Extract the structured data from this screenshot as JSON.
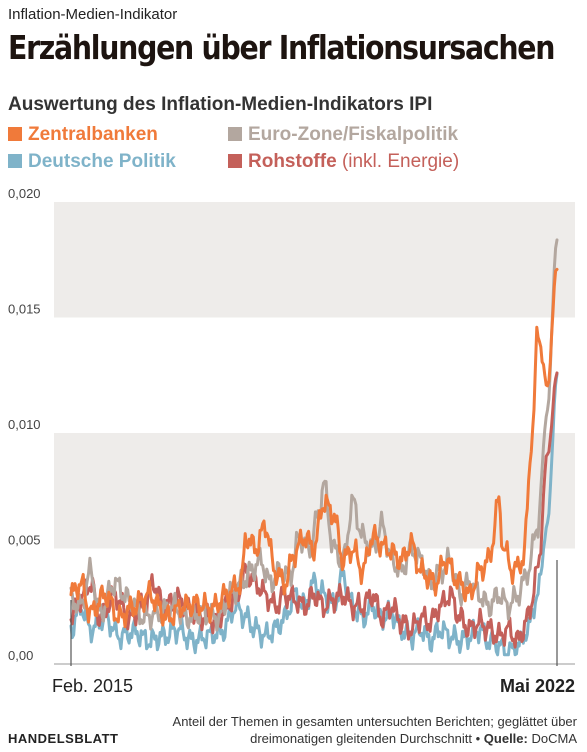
{
  "kicker": "Inflation-Medien-Indikator",
  "headline": "Erzählungen über Inflationsursachen",
  "subtitle": "Auswertung des Inflation-Medien-Indikators IPI",
  "legend": [
    {
      "name": "Zentralbanken",
      "color": "#f07a3a"
    },
    {
      "name": "Euro-Zone/Fiskalpolitik",
      "color": "#b3a79f"
    },
    {
      "name": "Deutsche Politik",
      "color": "#7fb3c9"
    },
    {
      "name": "Rohstoffe",
      "note": "(inkl. Energie)",
      "color": "#c4605a"
    }
  ],
  "footer": {
    "line1": "Anteil der Themen in gesamten untersuchten Berichten; geglättet über",
    "line2": "dreimonatigen gleitenden Durchschnitt •",
    "source_label": "Quelle:",
    "source": "DoCMA"
  },
  "brand": "HANDELSBLATT",
  "chart_data": {
    "type": "line",
    "ylim": [
      0,
      0.02
    ],
    "yticks": [
      "0,00",
      "0,005",
      "0,010",
      "0,015",
      "0,020"
    ],
    "x_start_label": "Feb. 2015",
    "x_end_label": "Mai 2022",
    "grid": "alternating horizontal bands",
    "series": [
      {
        "name": "Zentralbanken",
        "color": "#f07a3a",
        "anchors": [
          [
            0,
            0.003
          ],
          [
            0.02,
            0.0035
          ],
          [
            0.04,
            0.0022
          ],
          [
            0.07,
            0.003
          ],
          [
            0.1,
            0.002
          ],
          [
            0.13,
            0.0025
          ],
          [
            0.16,
            0.003
          ],
          [
            0.2,
            0.002
          ],
          [
            0.23,
            0.0025
          ],
          [
            0.26,
            0.0026
          ],
          [
            0.29,
            0.0024
          ],
          [
            0.32,
            0.003
          ],
          [
            0.35,
            0.0035
          ],
          [
            0.36,
            0.0055
          ],
          [
            0.38,
            0.005
          ],
          [
            0.4,
            0.006
          ],
          [
            0.42,
            0.004
          ],
          [
            0.44,
            0.0035
          ],
          [
            0.46,
            0.0048
          ],
          [
            0.48,
            0.0055
          ],
          [
            0.5,
            0.005
          ],
          [
            0.52,
            0.007
          ],
          [
            0.54,
            0.0065
          ],
          [
            0.56,
            0.0045
          ],
          [
            0.58,
            0.005
          ],
          [
            0.6,
            0.004
          ],
          [
            0.62,
            0.0055
          ],
          [
            0.65,
            0.005
          ],
          [
            0.68,
            0.0045
          ],
          [
            0.7,
            0.0052
          ],
          [
            0.72,
            0.004
          ],
          [
            0.75,
            0.0035
          ],
          [
            0.77,
            0.0045
          ],
          [
            0.8,
            0.0035
          ],
          [
            0.82,
            0.003
          ],
          [
            0.84,
            0.004
          ],
          [
            0.86,
            0.0045
          ],
          [
            0.88,
            0.007
          ],
          [
            0.89,
            0.005
          ],
          [
            0.91,
            0.004
          ],
          [
            0.93,
            0.0045
          ],
          [
            0.95,
            0.01
          ],
          [
            0.96,
            0.0145
          ],
          [
            0.98,
            0.012
          ],
          [
            1.0,
            0.0172
          ]
        ]
      },
      {
        "name": "Euro-Zone/Fiskalpolitik",
        "color": "#b3a79f",
        "anchors": [
          [
            0,
            0.0028
          ],
          [
            0.02,
            0.0025
          ],
          [
            0.04,
            0.004
          ],
          [
            0.06,
            0.0022
          ],
          [
            0.09,
            0.0035
          ],
          [
            0.12,
            0.0028
          ],
          [
            0.15,
            0.002
          ],
          [
            0.18,
            0.0022
          ],
          [
            0.21,
            0.0025
          ],
          [
            0.24,
            0.002
          ],
          [
            0.27,
            0.0022
          ],
          [
            0.3,
            0.002
          ],
          [
            0.33,
            0.003
          ],
          [
            0.35,
            0.0035
          ],
          [
            0.37,
            0.004
          ],
          [
            0.39,
            0.0045
          ],
          [
            0.41,
            0.0035
          ],
          [
            0.43,
            0.004
          ],
          [
            0.45,
            0.0038
          ],
          [
            0.47,
            0.0055
          ],
          [
            0.49,
            0.005
          ],
          [
            0.51,
            0.0065
          ],
          [
            0.52,
            0.0078
          ],
          [
            0.54,
            0.005
          ],
          [
            0.56,
            0.0045
          ],
          [
            0.58,
            0.007
          ],
          [
            0.6,
            0.0055
          ],
          [
            0.62,
            0.005
          ],
          [
            0.64,
            0.006
          ],
          [
            0.66,
            0.0045
          ],
          [
            0.68,
            0.004
          ],
          [
            0.7,
            0.005
          ],
          [
            0.72,
            0.0045
          ],
          [
            0.74,
            0.0035
          ],
          [
            0.76,
            0.004
          ],
          [
            0.78,
            0.0045
          ],
          [
            0.8,
            0.003
          ],
          [
            0.82,
            0.0035
          ],
          [
            0.84,
            0.003
          ],
          [
            0.86,
            0.0025
          ],
          [
            0.88,
            0.003
          ],
          [
            0.9,
            0.0025
          ],
          [
            0.92,
            0.003
          ],
          [
            0.94,
            0.004
          ],
          [
            0.96,
            0.006
          ],
          [
            0.98,
            0.011
          ],
          [
            1.0,
            0.0185
          ]
        ]
      },
      {
        "name": "Deutsche Politik",
        "color": "#7fb3c9",
        "anchors": [
          [
            0,
            0.0015
          ],
          [
            0.02,
            0.0025
          ],
          [
            0.04,
            0.0015
          ],
          [
            0.07,
            0.002
          ],
          [
            0.1,
            0.0012
          ],
          [
            0.13,
            0.0014
          ],
          [
            0.16,
            0.001
          ],
          [
            0.19,
            0.0012
          ],
          [
            0.22,
            0.0015
          ],
          [
            0.25,
            0.001
          ],
          [
            0.28,
            0.0012
          ],
          [
            0.31,
            0.0014
          ],
          [
            0.34,
            0.0025
          ],
          [
            0.36,
            0.002
          ],
          [
            0.38,
            0.0015
          ],
          [
            0.4,
            0.0012
          ],
          [
            0.42,
            0.0015
          ],
          [
            0.44,
            0.002
          ],
          [
            0.46,
            0.003
          ],
          [
            0.48,
            0.0025
          ],
          [
            0.5,
            0.0035
          ],
          [
            0.52,
            0.003
          ],
          [
            0.54,
            0.0025
          ],
          [
            0.56,
            0.0038
          ],
          [
            0.58,
            0.0025
          ],
          [
            0.6,
            0.002
          ],
          [
            0.62,
            0.0025
          ],
          [
            0.64,
            0.002
          ],
          [
            0.66,
            0.0022
          ],
          [
            0.68,
            0.0015
          ],
          [
            0.7,
            0.0012
          ],
          [
            0.72,
            0.0015
          ],
          [
            0.74,
            0.001
          ],
          [
            0.76,
            0.0015
          ],
          [
            0.78,
            0.0012
          ],
          [
            0.8,
            0.001
          ],
          [
            0.82,
            0.0012
          ],
          [
            0.84,
            0.0015
          ],
          [
            0.86,
            0.001
          ],
          [
            0.88,
            0.0008
          ],
          [
            0.9,
            0.0005
          ],
          [
            0.92,
            0.0008
          ],
          [
            0.94,
            0.0015
          ],
          [
            0.96,
            0.003
          ],
          [
            0.98,
            0.006
          ],
          [
            1.0,
            0.0125
          ]
        ]
      },
      {
        "name": "Rohstoffe",
        "color": "#c4605a",
        "anchors": [
          [
            0,
            0.002
          ],
          [
            0.02,
            0.0028
          ],
          [
            0.04,
            0.0035
          ],
          [
            0.06,
            0.002
          ],
          [
            0.09,
            0.003
          ],
          [
            0.12,
            0.002
          ],
          [
            0.15,
            0.0025
          ],
          [
            0.17,
            0.0035
          ],
          [
            0.19,
            0.0025
          ],
          [
            0.22,
            0.0028
          ],
          [
            0.25,
            0.0022
          ],
          [
            0.28,
            0.002
          ],
          [
            0.3,
            0.0018
          ],
          [
            0.32,
            0.0025
          ],
          [
            0.34,
            0.003
          ],
          [
            0.36,
            0.004
          ],
          [
            0.38,
            0.0035
          ],
          [
            0.4,
            0.003
          ],
          [
            0.42,
            0.0025
          ],
          [
            0.44,
            0.003
          ],
          [
            0.46,
            0.0028
          ],
          [
            0.48,
            0.0025
          ],
          [
            0.5,
            0.003
          ],
          [
            0.52,
            0.0025
          ],
          [
            0.54,
            0.0028
          ],
          [
            0.56,
            0.003
          ],
          [
            0.58,
            0.0025
          ],
          [
            0.6,
            0.0025
          ],
          [
            0.62,
            0.003
          ],
          [
            0.64,
            0.002
          ],
          [
            0.66,
            0.0025
          ],
          [
            0.68,
            0.0018
          ],
          [
            0.7,
            0.0015
          ],
          [
            0.72,
            0.002
          ],
          [
            0.74,
            0.0018
          ],
          [
            0.76,
            0.0025
          ],
          [
            0.78,
            0.003
          ],
          [
            0.8,
            0.002
          ],
          [
            0.82,
            0.0015
          ],
          [
            0.84,
            0.0018
          ],
          [
            0.86,
            0.0015
          ],
          [
            0.88,
            0.0012
          ],
          [
            0.9,
            0.0015
          ],
          [
            0.92,
            0.001
          ],
          [
            0.94,
            0.002
          ],
          [
            0.96,
            0.004
          ],
          [
            0.98,
            0.009
          ],
          [
            1.0,
            0.0125
          ]
        ]
      }
    ]
  }
}
